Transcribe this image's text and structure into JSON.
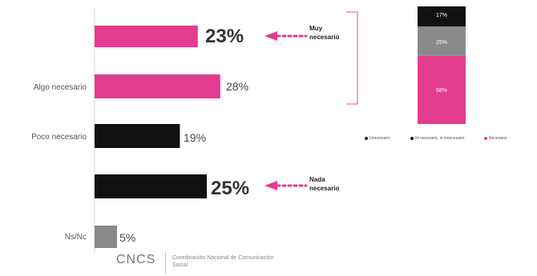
{
  "chart_data": [
    {
      "type": "bar",
      "orientation": "horizontal",
      "categories": [
        "",
        "Algo necesario",
        "Poco necesario",
        "",
        "Ns/Nc"
      ],
      "values": [
        23,
        28,
        19,
        25,
        5
      ],
      "value_labels": [
        "23%",
        "28%",
        "19%",
        "25%",
        "5%"
      ],
      "colors": [
        "#e23c8f",
        "#e23c8f",
        "#111111",
        "#111111",
        "#8a8a8a"
      ],
      "xlim": [
        0,
        30
      ],
      "annotations": [
        {
          "text": "Muy necesario",
          "points_to": 0
        },
        {
          "text": "Nada necesario",
          "points_to": 3
        }
      ]
    },
    {
      "type": "bar",
      "stacked": true,
      "series": [
        {
          "name": "Innecesario",
          "value": 17,
          "label": "17%",
          "color": "#111111"
        },
        {
          "name": "Ni necesario, ni innecesario",
          "value": 25,
          "label": "25%",
          "color": "#8a8a8a"
        },
        {
          "name": "Necesario",
          "value": 58,
          "label": "58%",
          "color": "#e23c8f"
        }
      ]
    }
  ],
  "footer": {
    "logo": "CNCS",
    "org_name": "Coordinación Nacional de Comunicación Social"
  },
  "colors": {
    "pink": "#e23c8f",
    "black": "#111111",
    "gray": "#8a8a8a",
    "bracket": "#e68abb"
  }
}
